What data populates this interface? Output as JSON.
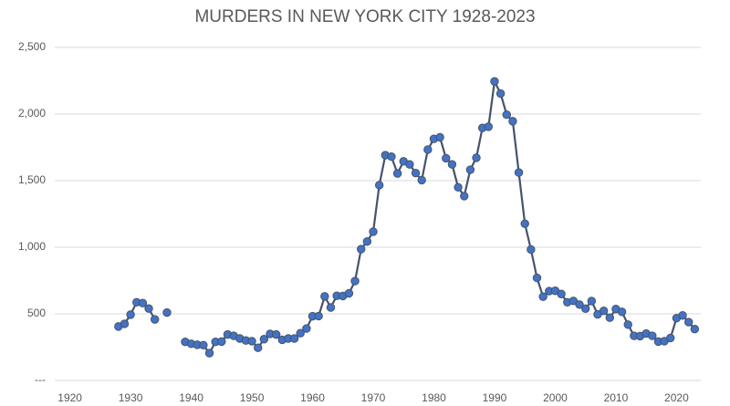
{
  "chart_data": {
    "type": "line",
    "title": "MURDERS IN NEW YORK CITY 1928-2023",
    "x": [
      1928,
      1929,
      1930,
      1931,
      1932,
      1933,
      1934,
      1935,
      1936,
      1937,
      1938,
      1939,
      1940,
      1941,
      1942,
      1943,
      1944,
      1945,
      1946,
      1947,
      1948,
      1949,
      1950,
      1951,
      1952,
      1953,
      1954,
      1955,
      1956,
      1957,
      1958,
      1959,
      1960,
      1961,
      1962,
      1963,
      1964,
      1965,
      1966,
      1967,
      1968,
      1969,
      1970,
      1971,
      1972,
      1973,
      1974,
      1975,
      1976,
      1977,
      1978,
      1979,
      1980,
      1981,
      1982,
      1983,
      1984,
      1985,
      1986,
      1987,
      1988,
      1989,
      1990,
      1991,
      1992,
      1993,
      1994,
      1995,
      1996,
      1997,
      1998,
      1999,
      2000,
      2001,
      2002,
      2003,
      2004,
      2005,
      2006,
      2007,
      2008,
      2009,
      2010,
      2011,
      2012,
      2013,
      2014,
      2015,
      2016,
      2017,
      2018,
      2019,
      2020,
      2021,
      2022,
      2023
    ],
    "series": [
      {
        "name": "Murders",
        "color": "#44546a",
        "marker_color": "#4472c4",
        "values": [
          405,
          425,
          494,
          587,
          581,
          540,
          458,
          null,
          510,
          null,
          null,
          290,
          275,
          268,
          265,
          205,
          290,
          292,
          345,
          335,
          315,
          300,
          295,
          245,
          310,
          350,
          345,
          305,
          315,
          315,
          355,
          390,
          482,
          483,
          631,
          548,
          636,
          634,
          654,
          746,
          986,
          1043,
          1117,
          1466,
          1691,
          1680,
          1554,
          1645,
          1622,
          1557,
          1504,
          1733,
          1814,
          1826,
          1668,
          1622,
          1450,
          1384,
          1582,
          1672,
          1896,
          1905,
          2245,
          2154,
          1995,
          1946,
          1561,
          1177,
          983,
          770,
          629,
          671,
          673,
          649,
          587,
          597,
          570,
          539,
          596,
          496,
          523,
          471,
          536,
          515,
          419,
          335,
          333,
          352,
          335,
          292,
          295,
          319,
          468,
          488,
          438,
          386
        ]
      }
    ],
    "xlim": [
      1917.5,
      2024
    ],
    "xticks": [
      1920,
      1930,
      1940,
      1950,
      1960,
      1970,
      1980,
      1990,
      2000,
      2010,
      2020
    ],
    "ylim": [
      0,
      2500
    ],
    "yticks": [
      {
        "value": 0,
        "label": "---"
      },
      500,
      {
        "value": 1000,
        "label": "1,000"
      },
      {
        "value": 1500,
        "label": "1,500"
      },
      {
        "value": 2000,
        "label": "2,000"
      },
      {
        "value": 2500,
        "label": "2,500"
      }
    ],
    "grid": true
  }
}
